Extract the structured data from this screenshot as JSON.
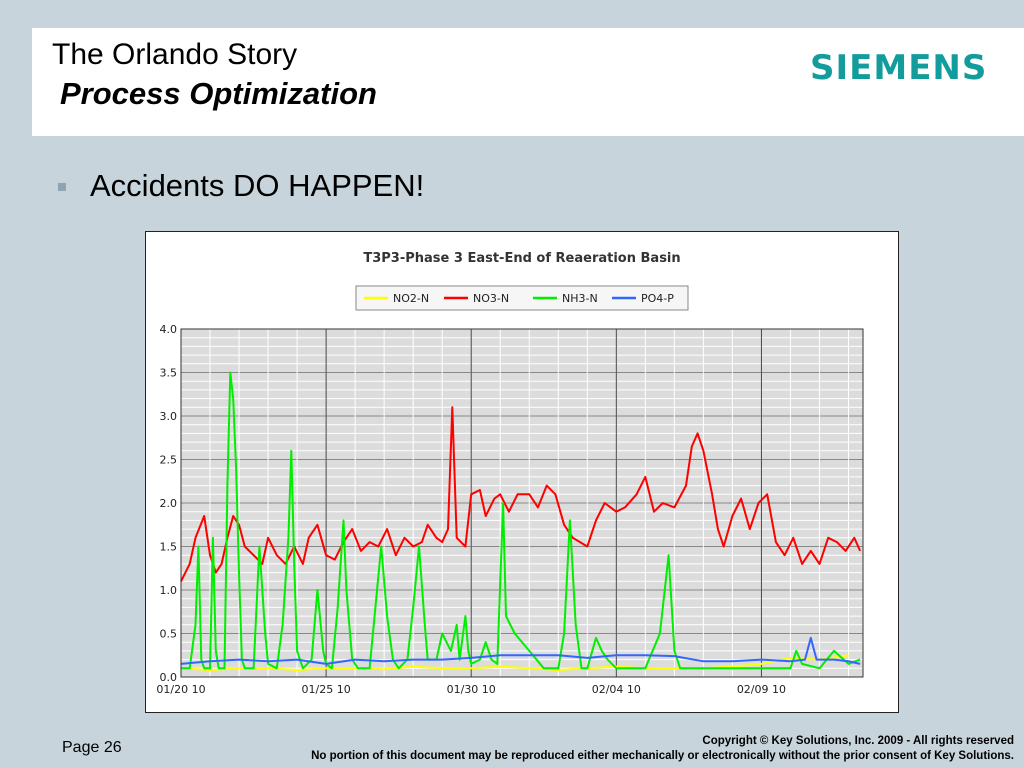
{
  "slide": {
    "title": "The Orlando Story",
    "subtitle": "Process Optimization",
    "bullet": "Accidents DO HAPPEN!",
    "page": "Page 26",
    "copyright": "Copyright © Key Solutions, Inc. 2009  -  All rights reserved",
    "notice": "No portion of this document may be reproduced either mechanically or electronically without the prior consent of Key Solutions."
  },
  "logo": {
    "text": "SIEMENS",
    "color": "#139c9c"
  },
  "bullet_color": "#8fa4b0",
  "chart_data": {
    "type": "line",
    "title": "T3P3-Phase 3 East-End of Reaeration Basin",
    "xlabel": "",
    "ylabel": "",
    "ylim": [
      0,
      4.0
    ],
    "xlim": [
      0,
      23.5
    ],
    "y_ticks": [
      "0.0",
      "0.5",
      "1.0",
      "1.5",
      "2.0",
      "2.5",
      "3.0",
      "3.5",
      "4.0"
    ],
    "x_ticks": [
      {
        "value": 0,
        "label": "01/20 10"
      },
      {
        "value": 5,
        "label": "01/25 10"
      },
      {
        "value": 10,
        "label": "01/30 10"
      },
      {
        "value": 15,
        "label": "02/04 10"
      },
      {
        "value": 20,
        "label": "02/09 10"
      }
    ],
    "grid": true,
    "legend_position": "top",
    "series": [
      {
        "name": "NO2-N",
        "color": "#ffff00",
        "points": [
          [
            0,
            0.1
          ],
          [
            1,
            0.08
          ],
          [
            2,
            0.1
          ],
          [
            3,
            0.1
          ],
          [
            4,
            0.08
          ],
          [
            5,
            0.1
          ],
          [
            6,
            0.1
          ],
          [
            7,
            0.09
          ],
          [
            8,
            0.12
          ],
          [
            9,
            0.1
          ],
          [
            10,
            0.1
          ],
          [
            11,
            0.12
          ],
          [
            12,
            0.1
          ],
          [
            13,
            0.08
          ],
          [
            14,
            0.1
          ],
          [
            15,
            0.12
          ],
          [
            16,
            0.1
          ],
          [
            17,
            0.1
          ],
          [
            18,
            0.1
          ],
          [
            19,
            0.12
          ],
          [
            20,
            0.15
          ],
          [
            21,
            0.22
          ],
          [
            22,
            0.2
          ],
          [
            23,
            0.25
          ]
        ]
      },
      {
        "name": "NO3-N",
        "color": "#ff0000",
        "points": [
          [
            0,
            1.1
          ],
          [
            0.3,
            1.3
          ],
          [
            0.5,
            1.6
          ],
          [
            0.8,
            1.85
          ],
          [
            1,
            1.4
          ],
          [
            1.2,
            1.2
          ],
          [
            1.4,
            1.3
          ],
          [
            1.6,
            1.6
          ],
          [
            1.8,
            1.85
          ],
          [
            2,
            1.75
          ],
          [
            2.2,
            1.5
          ],
          [
            2.5,
            1.4
          ],
          [
            2.8,
            1.3
          ],
          [
            3,
            1.6
          ],
          [
            3.3,
            1.4
          ],
          [
            3.6,
            1.3
          ],
          [
            3.9,
            1.5
          ],
          [
            4.2,
            1.3
          ],
          [
            4.4,
            1.6
          ],
          [
            4.7,
            1.75
          ],
          [
            5,
            1.4
          ],
          [
            5.3,
            1.35
          ],
          [
            5.6,
            1.55
          ],
          [
            5.9,
            1.7
          ],
          [
            6.2,
            1.45
          ],
          [
            6.5,
            1.55
          ],
          [
            6.8,
            1.5
          ],
          [
            7.1,
            1.7
          ],
          [
            7.4,
            1.4
          ],
          [
            7.7,
            1.6
          ],
          [
            8,
            1.5
          ],
          [
            8.3,
            1.55
          ],
          [
            8.5,
            1.75
          ],
          [
            8.8,
            1.6
          ],
          [
            9,
            1.55
          ],
          [
            9.2,
            1.7
          ],
          [
            9.35,
            3.1
          ],
          [
            9.5,
            1.6
          ],
          [
            9.8,
            1.5
          ],
          [
            10,
            2.1
          ],
          [
            10.3,
            2.15
          ],
          [
            10.5,
            1.85
          ],
          [
            10.8,
            2.05
          ],
          [
            11,
            2.1
          ],
          [
            11.3,
            1.9
          ],
          [
            11.6,
            2.1
          ],
          [
            12,
            2.1
          ],
          [
            12.3,
            1.95
          ],
          [
            12.6,
            2.2
          ],
          [
            12.9,
            2.1
          ],
          [
            13.2,
            1.75
          ],
          [
            13.5,
            1.6
          ],
          [
            14,
            1.5
          ],
          [
            14.3,
            1.8
          ],
          [
            14.6,
            2.0
          ],
          [
            15,
            1.9
          ],
          [
            15.3,
            1.95
          ],
          [
            15.7,
            2.1
          ],
          [
            16,
            2.3
          ],
          [
            16.3,
            1.9
          ],
          [
            16.6,
            2.0
          ],
          [
            17,
            1.95
          ],
          [
            17.4,
            2.2
          ],
          [
            17.6,
            2.65
          ],
          [
            17.8,
            2.8
          ],
          [
            18,
            2.6
          ],
          [
            18.3,
            2.1
          ],
          [
            18.5,
            1.7
          ],
          [
            18.7,
            1.5
          ],
          [
            19,
            1.85
          ],
          [
            19.3,
            2.05
          ],
          [
            19.6,
            1.7
          ],
          [
            19.9,
            2.0
          ],
          [
            20.2,
            2.1
          ],
          [
            20.5,
            1.55
          ],
          [
            20.8,
            1.4
          ],
          [
            21.1,
            1.6
          ],
          [
            21.4,
            1.3
          ],
          [
            21.7,
            1.45
          ],
          [
            22,
            1.3
          ],
          [
            22.3,
            1.6
          ],
          [
            22.6,
            1.55
          ],
          [
            22.9,
            1.45
          ],
          [
            23.2,
            1.6
          ],
          [
            23.4,
            1.45
          ]
        ]
      },
      {
        "name": "NH3-N",
        "color": "#00ee00",
        "points": [
          [
            0,
            0.1
          ],
          [
            0.3,
            0.1
          ],
          [
            0.5,
            0.6
          ],
          [
            0.6,
            1.5
          ],
          [
            0.7,
            0.2
          ],
          [
            0.8,
            0.1
          ],
          [
            1,
            0.1
          ],
          [
            1.1,
            1.6
          ],
          [
            1.2,
            0.3
          ],
          [
            1.3,
            0.1
          ],
          [
            1.5,
            0.1
          ],
          [
            1.6,
            2.2
          ],
          [
            1.7,
            3.5
          ],
          [
            1.8,
            3.2
          ],
          [
            1.9,
            2.4
          ],
          [
            2,
            1.2
          ],
          [
            2.1,
            0.2
          ],
          [
            2.2,
            0.1
          ],
          [
            2.5,
            0.1
          ],
          [
            2.7,
            1.5
          ],
          [
            2.9,
            0.5
          ],
          [
            3,
            0.15
          ],
          [
            3.3,
            0.1
          ],
          [
            3.5,
            0.6
          ],
          [
            3.7,
            1.6
          ],
          [
            3.8,
            2.6
          ],
          [
            3.9,
            1.3
          ],
          [
            4,
            0.3
          ],
          [
            4.2,
            0.1
          ],
          [
            4.5,
            0.2
          ],
          [
            4.7,
            1.0
          ],
          [
            4.9,
            0.3
          ],
          [
            5,
            0.15
          ],
          [
            5.2,
            0.1
          ],
          [
            5.4,
            0.8
          ],
          [
            5.6,
            1.8
          ],
          [
            5.7,
            1.0
          ],
          [
            5.9,
            0.2
          ],
          [
            6.1,
            0.1
          ],
          [
            6.5,
            0.1
          ],
          [
            6.7,
            0.8
          ],
          [
            6.9,
            1.5
          ],
          [
            7.1,
            0.7
          ],
          [
            7.3,
            0.2
          ],
          [
            7.5,
            0.1
          ],
          [
            7.8,
            0.2
          ],
          [
            8,
            0.8
          ],
          [
            8.2,
            1.5
          ],
          [
            8.4,
            0.6
          ],
          [
            8.5,
            0.2
          ],
          [
            8.8,
            0.2
          ],
          [
            9,
            0.5
          ],
          [
            9.3,
            0.3
          ],
          [
            9.5,
            0.6
          ],
          [
            9.6,
            0.2
          ],
          [
            9.8,
            0.7
          ],
          [
            9.9,
            0.3
          ],
          [
            10,
            0.15
          ],
          [
            10.3,
            0.2
          ],
          [
            10.5,
            0.4
          ],
          [
            10.7,
            0.2
          ],
          [
            10.9,
            0.15
          ],
          [
            11.1,
            2.0
          ],
          [
            11.2,
            0.7
          ],
          [
            11.5,
            0.5
          ],
          [
            12,
            0.3
          ],
          [
            12.5,
            0.1
          ],
          [
            13,
            0.1
          ],
          [
            13.2,
            0.5
          ],
          [
            13.4,
            1.8
          ],
          [
            13.6,
            0.6
          ],
          [
            13.8,
            0.1
          ],
          [
            14,
            0.1
          ],
          [
            14.3,
            0.45
          ],
          [
            14.5,
            0.3
          ],
          [
            14.7,
            0.2
          ],
          [
            15,
            0.1
          ],
          [
            16,
            0.1
          ],
          [
            16.5,
            0.5
          ],
          [
            16.8,
            1.4
          ],
          [
            17,
            0.3
          ],
          [
            17.2,
            0.1
          ],
          [
            18,
            0.1
          ],
          [
            20,
            0.1
          ],
          [
            21,
            0.1
          ],
          [
            21.2,
            0.3
          ],
          [
            21.4,
            0.15
          ],
          [
            22,
            0.1
          ],
          [
            22.5,
            0.3
          ],
          [
            23,
            0.15
          ],
          [
            23.4,
            0.2
          ]
        ]
      },
      {
        "name": "PO4-P",
        "color": "#3366ff",
        "points": [
          [
            0,
            0.15
          ],
          [
            1,
            0.18
          ],
          [
            2,
            0.2
          ],
          [
            3,
            0.18
          ],
          [
            4,
            0.2
          ],
          [
            5,
            0.15
          ],
          [
            6,
            0.2
          ],
          [
            7,
            0.18
          ],
          [
            8,
            0.2
          ],
          [
            9,
            0.2
          ],
          [
            10,
            0.22
          ],
          [
            11,
            0.25
          ],
          [
            12,
            0.25
          ],
          [
            13,
            0.25
          ],
          [
            14,
            0.22
          ],
          [
            15,
            0.25
          ],
          [
            16,
            0.25
          ],
          [
            17,
            0.24
          ],
          [
            18,
            0.18
          ],
          [
            19,
            0.18
          ],
          [
            20,
            0.2
          ],
          [
            21,
            0.18
          ],
          [
            21.5,
            0.2
          ],
          [
            21.7,
            0.45
          ],
          [
            21.9,
            0.2
          ],
          [
            22.5,
            0.2
          ],
          [
            23,
            0.18
          ],
          [
            23.4,
            0.15
          ]
        ]
      }
    ]
  }
}
